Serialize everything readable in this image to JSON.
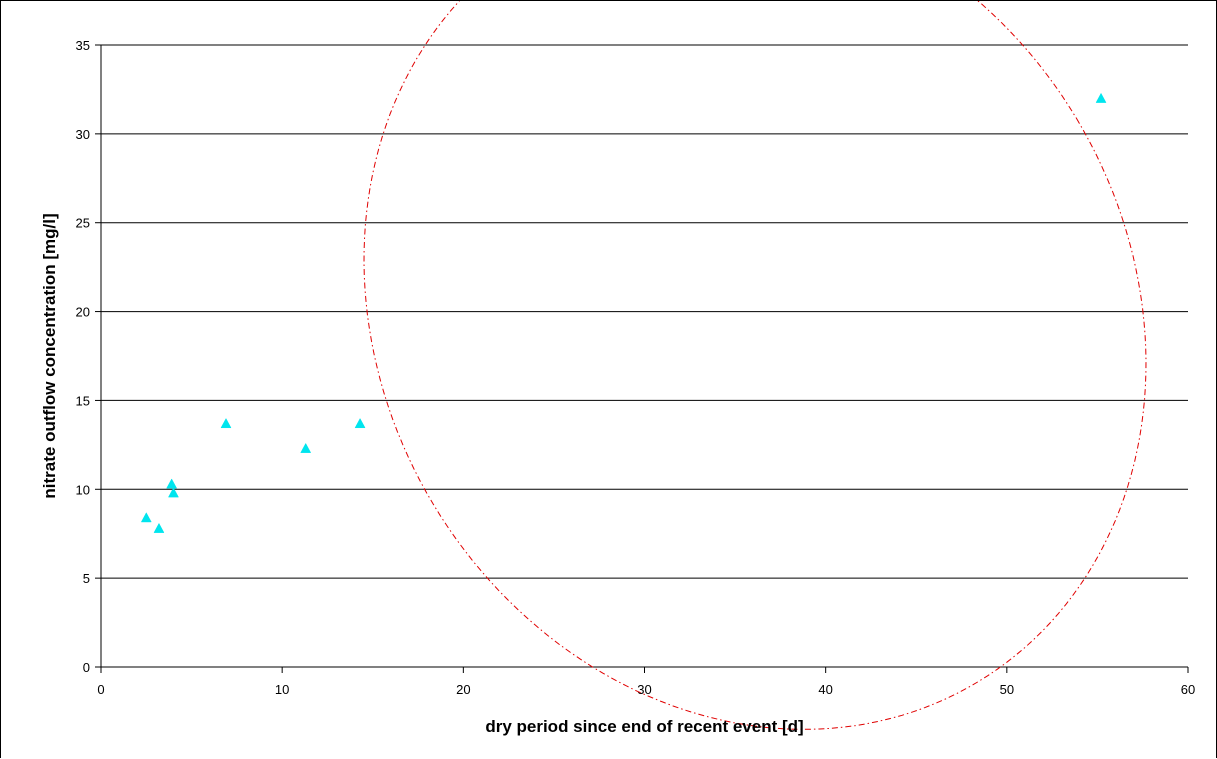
{
  "chart_data": {
    "type": "scatter",
    "xlabel": "dry period since end of recent event [d]",
    "ylabel": "nitrate outflow concentration [mg/l]",
    "xlim": [
      0,
      60
    ],
    "ylim": [
      0,
      35
    ],
    "x_ticks": [
      0,
      10,
      20,
      30,
      40,
      50,
      60
    ],
    "y_ticks": [
      0,
      5,
      10,
      15,
      20,
      25,
      30,
      35
    ],
    "grid": "horizontal",
    "legend": "none",
    "series": [
      {
        "color": "#00E5EE",
        "marker": "triangle",
        "points": [
          {
            "x": 2.5,
            "y": 8.4
          },
          {
            "x": 3.2,
            "y": 7.8
          },
          {
            "x": 3.9,
            "y": 10.3
          },
          {
            "x": 4.0,
            "y": 9.8
          },
          {
            "x": 6.9,
            "y": 13.7
          },
          {
            "x": 11.3,
            "y": 12.3
          },
          {
            "x": 14.3,
            "y": 13.7
          },
          {
            "x": 55.2,
            "y": 32.0
          }
        ]
      }
    ],
    "annotations": [
      {
        "type": "ellipse",
        "color": "#E00000",
        "style": "dash-dot",
        "center": {
          "x": 36.1,
          "y": 20.0
        },
        "semi_axis_x": 20.7,
        "semi_axis_y": 12.8,
        "rotation_deg": -31
      }
    ]
  }
}
